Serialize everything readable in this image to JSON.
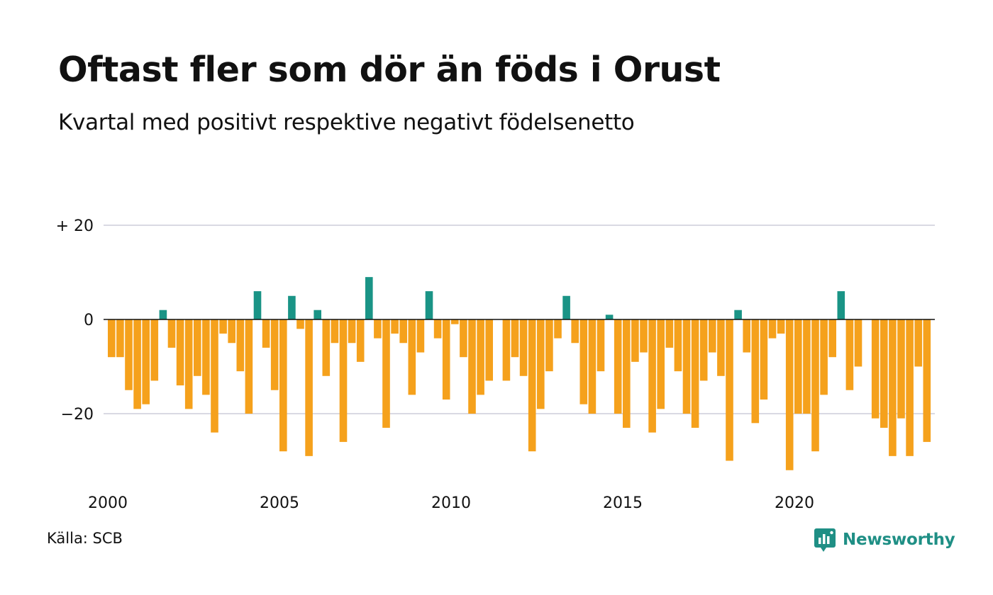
{
  "title": "Oftast fler som dör än föds i Orust",
  "subtitle": "Kvartal med positivt respektive negativt födelsenetto",
  "source": "Källa: SCB",
  "brand": {
    "name": "Newsworthy",
    "icon": "newsworthy-logo-icon"
  },
  "colors": {
    "positive": "#1a9486",
    "negative": "#f5a11c",
    "grid": "#d9d9e3",
    "zero": "#111111"
  },
  "chart_data": {
    "type": "bar",
    "title": "Oftast fler som dör än föds i Orust",
    "subtitle": "Kvartal med positivt respektive negativt födelsenetto",
    "xlabel": "",
    "ylabel": "",
    "ylim": [
      -35,
      22
    ],
    "grid": true,
    "y_ticks": [
      {
        "value": 20,
        "label": "+ 20"
      },
      {
        "value": 0,
        "label": "0"
      },
      {
        "value": -20,
        "label": "−20"
      }
    ],
    "x_ticks": [
      {
        "value": 2000,
        "label": "2000"
      },
      {
        "value": 2005,
        "label": "2005"
      },
      {
        "value": 2010,
        "label": "2010"
      },
      {
        "value": 2015,
        "label": "2015"
      },
      {
        "value": 2020,
        "label": "2020"
      }
    ],
    "x_start": 2000,
    "periods_per_year": 4,
    "values": [
      -8,
      -8,
      -15,
      -19,
      -18,
      -13,
      2,
      -6,
      -14,
      -19,
      -12,
      -16,
      -24,
      -3,
      -5,
      -11,
      -20,
      6,
      -6,
      -15,
      -28,
      5,
      -2,
      -29,
      2,
      -12,
      -5,
      -26,
      -5,
      -9,
      9,
      -4,
      -23,
      -3,
      -5,
      -16,
      -7,
      6,
      -4,
      -17,
      -1,
      -8,
      -20,
      -16,
      -13,
      0,
      -13,
      -8,
      -12,
      -28,
      -19,
      -11,
      -4,
      5,
      -5,
      -18,
      -20,
      -11,
      1,
      -20,
      -23,
      -9,
      -7,
      -24,
      -19,
      -6,
      -11,
      -20,
      -23,
      -13,
      -7,
      -12,
      -30,
      2,
      -7,
      -22,
      -17,
      -4,
      -3,
      -32,
      -20,
      -20,
      -28,
      -16,
      -8,
      6,
      -15,
      -10,
      0,
      -21,
      -23,
      -29,
      -21,
      -29,
      -10,
      -26
    ]
  }
}
